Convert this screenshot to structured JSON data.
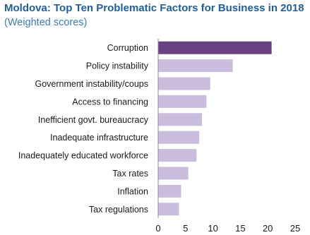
{
  "chart_data": {
    "type": "bar",
    "orientation": "horizontal",
    "title": "Moldova: Top Ten Problematic Factors for Business in 2018",
    "subtitle": "(Weighted scores)",
    "categories": [
      "Corruption",
      "Policy instability",
      "Government instability/coups",
      "Access to financing",
      "Inefficient govt. bureaucracy",
      "Inadequate infrastructure",
      "Inadequately educated workforce",
      "Tax rates",
      "Inflation",
      "Tax regulations"
    ],
    "values": [
      20.7,
      13.6,
      9.5,
      8.8,
      8.0,
      7.5,
      7.0,
      5.5,
      4.2,
      3.8
    ],
    "xlim": [
      0,
      25
    ],
    "xticks": [
      0,
      5,
      10,
      15,
      20,
      25
    ],
    "xlabel": "",
    "ylabel": "",
    "grid": false,
    "colors": {
      "highlight": "#6a4182",
      "bar": "#c9bcdc"
    }
  }
}
